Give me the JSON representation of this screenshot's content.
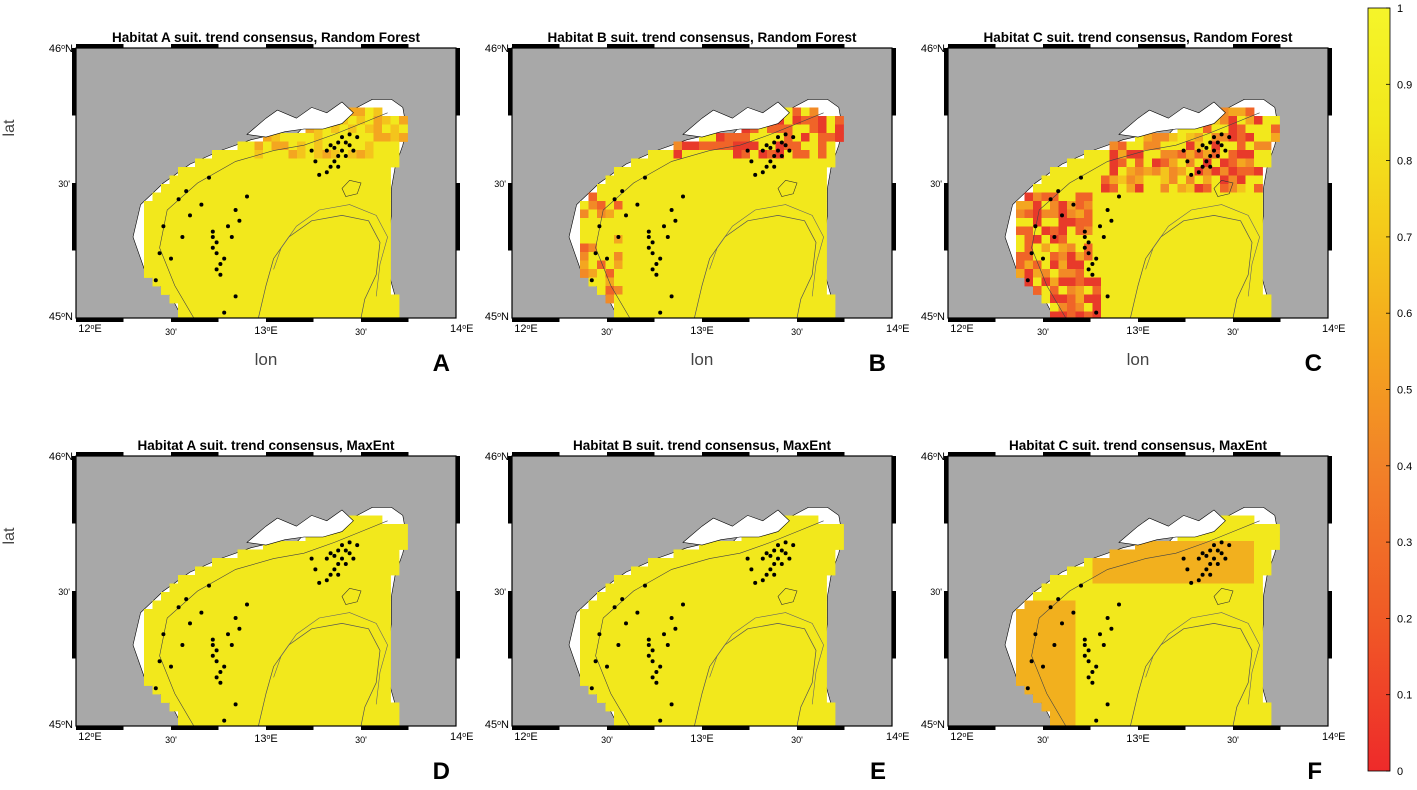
{
  "colors": {
    "land": "#a8a8a8",
    "sea": "#ffffff",
    "high": "#f2e81c",
    "frame": "#000000",
    "colormap": [
      "#ee2a2a",
      "#f05a26",
      "#f28228",
      "#f4a41e",
      "#f4c81a",
      "#f2e81c",
      "#f5f52a"
    ]
  },
  "panels": [
    {
      "letter": "A",
      "title": "Habitat A suit. trend consensus, Random Forest",
      "habitat": "A",
      "model": "Random Forest"
    },
    {
      "letter": "B",
      "title": "Habitat B suit. trend consensus, Random Forest",
      "habitat": "B",
      "model": "Random Forest"
    },
    {
      "letter": "C",
      "title": "Habitat C suit. trend consensus, Random Forest",
      "habitat": "C",
      "model": "Random Forest"
    },
    {
      "letter": "D",
      "title": "Habitat A suit. trend consensus, MaxEnt",
      "habitat": "A",
      "model": "MaxEnt"
    },
    {
      "letter": "E",
      "title": "Habitat B suit. trend consensus, MaxEnt",
      "habitat": "B",
      "model": "MaxEnt"
    },
    {
      "letter": "F",
      "title": "Habitat C suit. trend consensus, MaxEnt",
      "habitat": "C",
      "model": "MaxEnt"
    }
  ],
  "axes": {
    "xlabel": "lon",
    "ylabel": "lat",
    "lat_ticks": [
      {
        "base": "46",
        "sup": "o",
        "tail": "N"
      },
      {
        "base": "30'"
      },
      {
        "base": "45",
        "sup": "o",
        "tail": "N"
      }
    ],
    "lon_ticks": [
      {
        "base": "12",
        "sup": "o",
        "tail": "E"
      },
      {
        "base": "30'"
      },
      {
        "base": "13",
        "sup": "o",
        "tail": "E"
      },
      {
        "base": "30'"
      },
      {
        "base": "14",
        "sup": "o",
        "tail": "E"
      }
    ]
  },
  "colorbar": {
    "ticks": [
      "0",
      "0.1",
      "0.2",
      "0.3",
      "0.4",
      "0.5",
      "0.6",
      "0.7",
      "0.8",
      "0.9",
      "1"
    ]
  }
}
